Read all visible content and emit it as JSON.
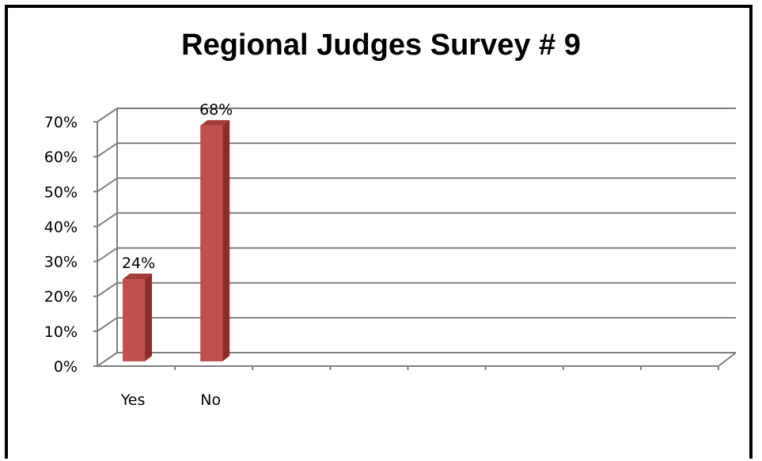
{
  "chart_data": {
    "type": "bar",
    "title": "Regional Judges Survey # 9",
    "categories": [
      "Yes",
      "No"
    ],
    "values": [
      24,
      68
    ],
    "data_labels": [
      "24%",
      "68%"
    ],
    "ylim": [
      0,
      70
    ],
    "yticks": [
      "0%",
      "10%",
      "20%",
      "30%",
      "40%",
      "50%",
      "60%",
      "70%"
    ],
    "grid": true,
    "style": "3d-column",
    "colors": {
      "bar": "#c0504d",
      "bar_side": "#8c2d2a",
      "bar_top": "#a63c39",
      "grid": "#7f7f7f"
    }
  }
}
